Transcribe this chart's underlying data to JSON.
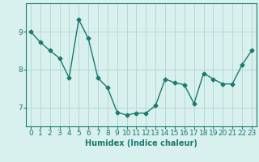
{
  "x": [
    0,
    1,
    2,
    3,
    4,
    5,
    6,
    7,
    8,
    9,
    10,
    11,
    12,
    13,
    14,
    15,
    16,
    17,
    18,
    19,
    20,
    21,
    22,
    23
  ],
  "y": [
    9.0,
    8.72,
    8.5,
    8.3,
    7.78,
    9.32,
    8.82,
    7.78,
    7.52,
    6.87,
    6.8,
    6.85,
    6.85,
    7.05,
    7.75,
    7.65,
    7.6,
    7.1,
    7.9,
    7.75,
    7.62,
    7.62,
    8.12,
    8.5
  ],
  "line_color": "#1a7a6e",
  "marker": "D",
  "marker_size": 2.5,
  "line_width": 1.0,
  "bg_color": "#d8f0ee",
  "grid_color": "#b8d8d4",
  "xlabel": "Humidex (Indice chaleur)",
  "xlabel_fontsize": 7,
  "tick_fontsize": 6.5,
  "yticks": [
    7,
    8,
    9
  ],
  "ylim": [
    6.5,
    9.75
  ],
  "xlim": [
    -0.5,
    23.5
  ]
}
